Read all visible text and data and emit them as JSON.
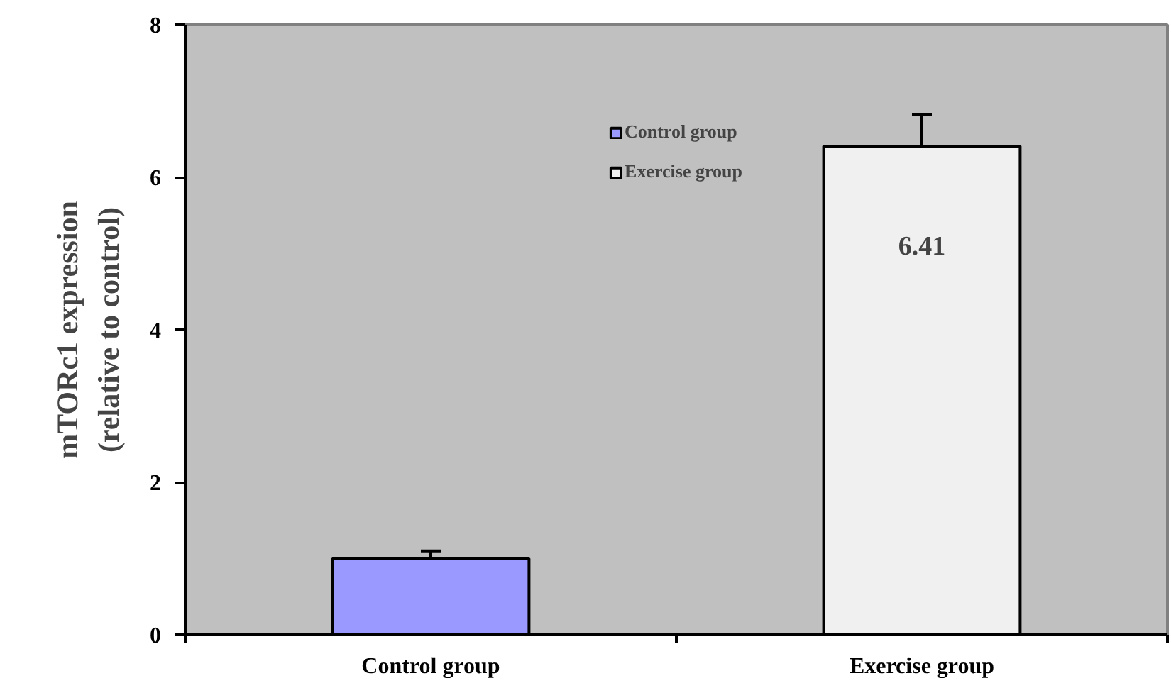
{
  "chart_data": {
    "type": "bar",
    "ylabel": "mTORc1 expression\n(relative to control)",
    "categories": [
      "Control group",
      "Exercise group"
    ],
    "series": [
      {
        "name": "Control group",
        "color": "#9999ff",
        "values": [
          1.0,
          null
        ],
        "errors": [
          0.1,
          null
        ],
        "value_labels": [
          null,
          null
        ]
      },
      {
        "name": "Exercise group",
        "color": "#f0f0f0",
        "values": [
          null,
          6.41
        ],
        "errors": [
          null,
          0.41
        ],
        "value_labels": [
          null,
          "6.41"
        ]
      }
    ],
    "ylim": [
      0,
      8
    ],
    "yticks": [
      0,
      2,
      4,
      6,
      8
    ],
    "grid": false,
    "legend": "top"
  }
}
